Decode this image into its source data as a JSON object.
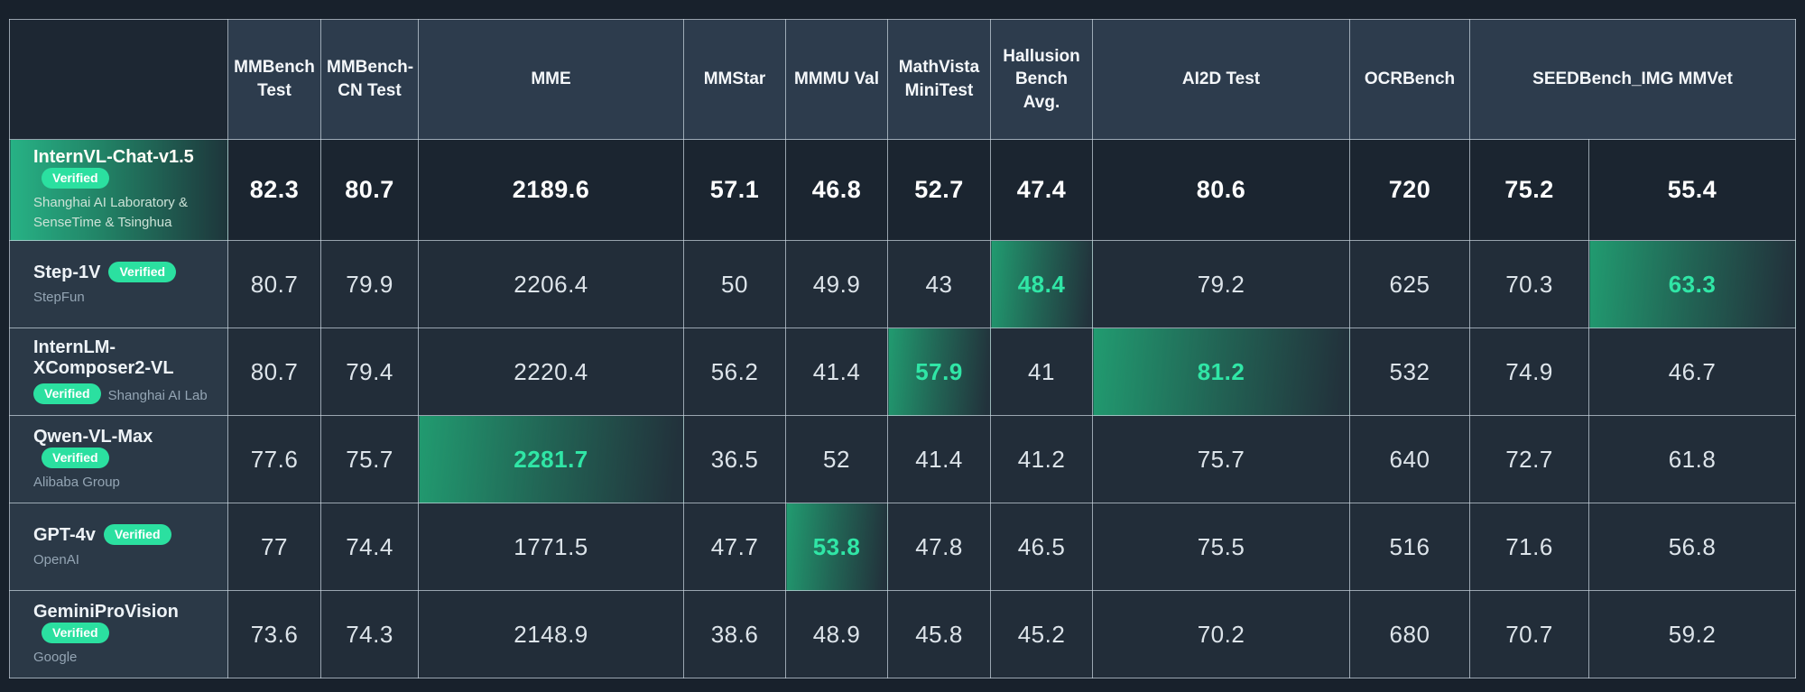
{
  "accent": {
    "highlight_green": "#2be0a0",
    "highlight_text_green": "#30e6a6",
    "featured_row_green": "#27b285",
    "header_bg": "#2d3c4d",
    "cell_bg": "#222d39",
    "page_bg": "#18212c"
  },
  "table": {
    "corner_label": "",
    "headers": [
      {
        "label": "MMBench Test",
        "colspan": 1
      },
      {
        "label": "MMBench-CN Test",
        "colspan": 1
      },
      {
        "label": "MME",
        "colspan": 1
      },
      {
        "label": "MMStar",
        "colspan": 1
      },
      {
        "label": "MMMU Val",
        "colspan": 1
      },
      {
        "label": "MathVista MiniTest",
        "colspan": 1
      },
      {
        "label": "Hallusion Bench Avg.",
        "colspan": 1
      },
      {
        "label": "AI2D Test",
        "colspan": 1
      },
      {
        "label": "OCRBench",
        "colspan": 1
      },
      {
        "label": "SEEDBench_IMG MMVet",
        "colspan": 2
      }
    ],
    "rows": [
      {
        "model": "InternVL-Chat-v1.5",
        "org": "Shanghai AI Laboratory & SenseTime & Tsinghua",
        "badge": "Verified",
        "badge_inline": true,
        "featured": true,
        "values": [
          {
            "v": "82.3",
            "hl": true
          },
          {
            "v": "80.7",
            "hl": true
          },
          {
            "v": "2189.6",
            "hl": false
          },
          {
            "v": "57.1",
            "hl": true
          },
          {
            "v": "46.8",
            "hl": false
          },
          {
            "v": "52.7",
            "hl": false
          },
          {
            "v": "47.4",
            "hl": false
          },
          {
            "v": "80.6",
            "hl": false
          },
          {
            "v": "720",
            "hl": true
          },
          {
            "v": "75.2",
            "hl": true
          },
          {
            "v": "55.4",
            "hl": false
          }
        ]
      },
      {
        "model": "Step-1V",
        "org": "StepFun",
        "badge": "Verified",
        "badge_inline": true,
        "featured": false,
        "values": [
          {
            "v": "80.7",
            "hl": false
          },
          {
            "v": "79.9",
            "hl": false
          },
          {
            "v": "2206.4",
            "hl": false
          },
          {
            "v": "50",
            "hl": false
          },
          {
            "v": "49.9",
            "hl": false
          },
          {
            "v": "43",
            "hl": false
          },
          {
            "v": "48.4",
            "hl": true
          },
          {
            "v": "79.2",
            "hl": false
          },
          {
            "v": "625",
            "hl": false
          },
          {
            "v": "70.3",
            "hl": false
          },
          {
            "v": "63.3",
            "hl": true
          }
        ]
      },
      {
        "model": "InternLM-XComposer2-VL",
        "org": "Shanghai AI Lab",
        "badge": "Verified",
        "badge_inline": false,
        "featured": false,
        "values": [
          {
            "v": "80.7",
            "hl": false
          },
          {
            "v": "79.4",
            "hl": false
          },
          {
            "v": "2220.4",
            "hl": false
          },
          {
            "v": "56.2",
            "hl": false
          },
          {
            "v": "41.4",
            "hl": false
          },
          {
            "v": "57.9",
            "hl": true
          },
          {
            "v": "41",
            "hl": false
          },
          {
            "v": "81.2",
            "hl": true
          },
          {
            "v": "532",
            "hl": false
          },
          {
            "v": "74.9",
            "hl": false
          },
          {
            "v": "46.7",
            "hl": false
          }
        ]
      },
      {
        "model": "Qwen-VL-Max",
        "org": "Alibaba Group",
        "badge": "Verified",
        "badge_inline": true,
        "featured": false,
        "values": [
          {
            "v": "77.6",
            "hl": false
          },
          {
            "v": "75.7",
            "hl": false
          },
          {
            "v": "2281.7",
            "hl": true
          },
          {
            "v": "36.5",
            "hl": false
          },
          {
            "v": "52",
            "hl": false
          },
          {
            "v": "41.4",
            "hl": false
          },
          {
            "v": "41.2",
            "hl": false
          },
          {
            "v": "75.7",
            "hl": false
          },
          {
            "v": "640",
            "hl": false
          },
          {
            "v": "72.7",
            "hl": false
          },
          {
            "v": "61.8",
            "hl": false
          }
        ]
      },
      {
        "model": "GPT-4v",
        "org": "OpenAI",
        "badge": "Verified",
        "badge_inline": true,
        "featured": false,
        "values": [
          {
            "v": "77",
            "hl": false
          },
          {
            "v": "74.4",
            "hl": false
          },
          {
            "v": "1771.5",
            "hl": false
          },
          {
            "v": "47.7",
            "hl": false
          },
          {
            "v": "53.8",
            "hl": true
          },
          {
            "v": "47.8",
            "hl": false
          },
          {
            "v": "46.5",
            "hl": false
          },
          {
            "v": "75.5",
            "hl": false
          },
          {
            "v": "516",
            "hl": false
          },
          {
            "v": "71.6",
            "hl": false
          },
          {
            "v": "56.8",
            "hl": false
          }
        ]
      },
      {
        "model": "GeminiProVision",
        "org": "Google",
        "badge": "Verified",
        "badge_inline": true,
        "featured": false,
        "values": [
          {
            "v": "73.6",
            "hl": false
          },
          {
            "v": "74.3",
            "hl": false
          },
          {
            "v": "2148.9",
            "hl": false
          },
          {
            "v": "38.6",
            "hl": false
          },
          {
            "v": "48.9",
            "hl": false
          },
          {
            "v": "45.8",
            "hl": false
          },
          {
            "v": "45.2",
            "hl": false
          },
          {
            "v": "70.2",
            "hl": false
          },
          {
            "v": "680",
            "hl": false
          },
          {
            "v": "70.7",
            "hl": false
          },
          {
            "v": "59.2",
            "hl": false
          }
        ]
      }
    ]
  }
}
